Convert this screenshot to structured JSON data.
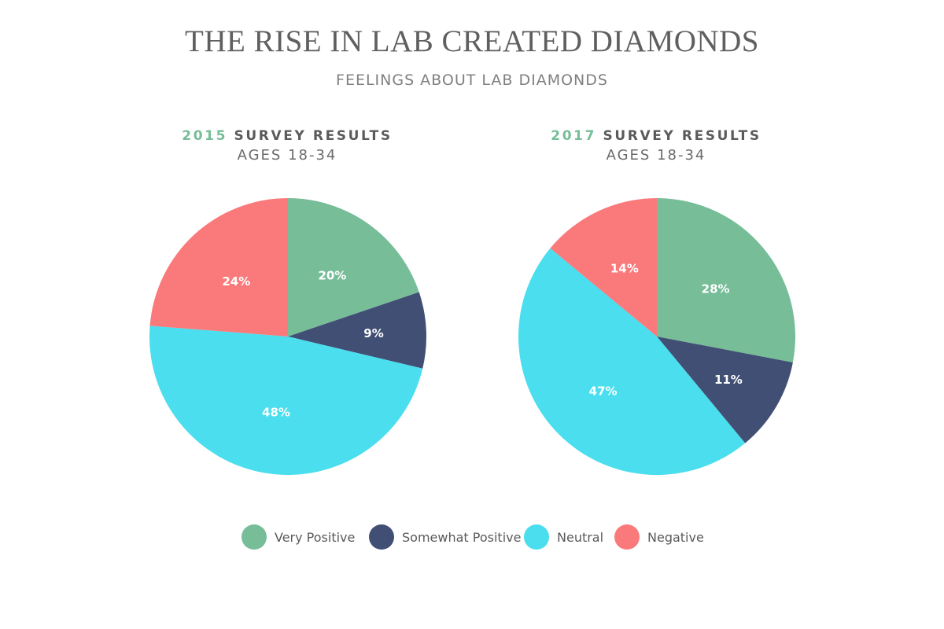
{
  "title": "THE RISE IN LAB CREATED DIAMONDS",
  "subtitle": "FEELINGS ABOUT LAB DIAMONDS",
  "colors": {
    "very_positive": "#76bd98",
    "somewhat_positive": "#414f74",
    "neutral": "#4adeee",
    "negative": "#fa7a7b",
    "year_accent": "#76bd98"
  },
  "charts": [
    {
      "year": "2015",
      "heading": "SURVEY RESULTS",
      "ages": "AGES 18-34"
    },
    {
      "year": "2017",
      "heading": "SURVEY RESULTS",
      "ages": "AGES 18-34"
    }
  ],
  "legend": [
    {
      "label": "Very Positive",
      "color": "#76bd98"
    },
    {
      "label": "Somewhat Positive",
      "color": "#414f74"
    },
    {
      "label": "Neutral",
      "color": "#4adeee"
    },
    {
      "label": "Negative",
      "color": "#fa7a7b"
    }
  ],
  "chart_data": [
    {
      "type": "pie",
      "title": "2015 SURVEY RESULTS",
      "subtitle": "AGES 18-34",
      "categories": [
        "Very Positive",
        "Somewhat Positive",
        "Neutral",
        "Negative"
      ],
      "values": [
        20,
        9,
        48,
        24
      ],
      "labels": [
        "20%",
        "9%",
        "48%",
        "24%"
      ],
      "colors": [
        "#76bd98",
        "#414f74",
        "#4adeee",
        "#fa7a7b"
      ],
      "legend": "bottom"
    },
    {
      "type": "pie",
      "title": "2017 SURVEY RESULTS",
      "subtitle": "AGES 18-34",
      "categories": [
        "Very Positive",
        "Somewhat Positive",
        "Neutral",
        "Negative"
      ],
      "values": [
        28,
        11,
        47,
        14
      ],
      "labels": [
        "28%",
        "11%",
        "47%",
        "14%"
      ],
      "colors": [
        "#76bd98",
        "#414f74",
        "#4adeee",
        "#fa7a7b"
      ],
      "legend": "bottom"
    }
  ]
}
